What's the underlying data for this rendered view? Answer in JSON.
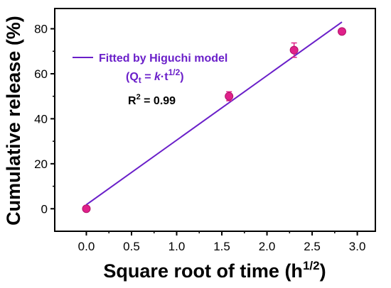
{
  "chart_data": {
    "type": "scatter",
    "xlabel": "Square root of time (h",
    "xlabel_sup": "1/2",
    "xlabel_end": ")",
    "ylabel": "Cumulative release (%)",
    "xlim": [
      -0.35,
      3.2
    ],
    "ylim": [
      -10,
      89
    ],
    "x_ticks": [
      0.0,
      0.5,
      1.0,
      1.5,
      2.0,
      2.5,
      3.0
    ],
    "x_tick_labels": [
      "0.0",
      "0.5",
      "1.0",
      "1.5",
      "2.0",
      "2.5",
      "3.0"
    ],
    "y_ticks": [
      0,
      20,
      40,
      60,
      80
    ],
    "y_tick_labels": [
      "0",
      "20",
      "40",
      "60",
      "80"
    ],
    "points": [
      {
        "x": 0.0,
        "y": 0.0,
        "err": 0.8
      },
      {
        "x": 1.58,
        "y": 50.0,
        "err": 2.0
      },
      {
        "x": 2.3,
        "y": 70.5,
        "err": 3.2
      },
      {
        "x": 2.83,
        "y": 78.8,
        "err": 1.2
      }
    ],
    "fit_line": {
      "x": [
        0.0,
        2.83
      ],
      "y": [
        1.8,
        83.0
      ]
    },
    "legend": {
      "label": "Fitted by Higuchi model",
      "equation_prefix": "(Q",
      "equation_sub": "t",
      "equation_mid": " = ",
      "equation_k": "k",
      "equation_dot": "·t",
      "equation_sup": "1/2",
      "equation_end": ")",
      "r2_prefix": "R",
      "r2_sup": "2",
      "r2_value": " = 0.99",
      "position": "top-left"
    },
    "colors": {
      "line": "#6a1fc9",
      "marker": "#e0218a",
      "axis": "#000000"
    }
  }
}
